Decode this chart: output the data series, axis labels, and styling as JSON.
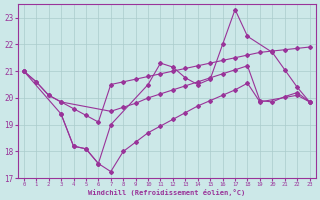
{
  "bg_color": "#cce8e8",
  "line_color": "#993399",
  "grid_color": "#aacccc",
  "xlabel": "Windchill (Refroidissement éolien,°C)",
  "ylim": [
    17,
    23.5
  ],
  "xlim": [
    -0.5,
    23.5
  ],
  "yticks": [
    17,
    18,
    19,
    20,
    21,
    22,
    23
  ],
  "xticks": [
    0,
    1,
    2,
    3,
    4,
    5,
    6,
    7,
    8,
    9,
    10,
    11,
    12,
    13,
    14,
    15,
    16,
    17,
    18,
    19,
    20,
    21,
    22,
    23
  ],
  "line1_x": [
    0,
    1,
    2,
    3,
    4,
    5,
    6,
    7,
    8,
    9,
    10,
    11,
    12,
    13,
    14,
    15,
    16,
    17,
    18,
    19,
    20,
    21,
    22,
    23
  ],
  "line1_y": [
    21.0,
    20.6,
    20.1,
    19.85,
    19.6,
    19.35,
    19.1,
    20.5,
    20.6,
    20.7,
    20.8,
    20.9,
    21.0,
    21.1,
    21.2,
    21.3,
    21.4,
    21.5,
    21.6,
    21.7,
    21.75,
    21.8,
    21.85,
    21.9
  ],
  "line2_x": [
    0,
    3,
    4,
    5,
    6,
    7,
    10,
    11,
    12,
    13,
    14,
    15,
    16,
    17,
    18,
    20,
    21,
    22,
    23
  ],
  "line2_y": [
    21.0,
    19.4,
    18.2,
    18.1,
    17.55,
    19.0,
    20.5,
    21.3,
    21.15,
    20.75,
    20.5,
    20.7,
    22.0,
    23.3,
    22.3,
    21.7,
    21.05,
    20.4,
    19.85
  ],
  "line3_x": [
    3,
    4,
    5,
    6,
    7,
    8,
    9,
    10,
    11,
    12,
    13,
    14,
    15,
    16,
    17,
    18,
    19,
    22,
    23
  ],
  "line3_y": [
    19.4,
    18.2,
    18.1,
    17.55,
    17.25,
    18.0,
    18.35,
    18.7,
    18.95,
    19.2,
    19.45,
    19.7,
    19.9,
    20.1,
    20.3,
    20.55,
    19.85,
    20.1,
    19.85
  ],
  "line4_x": [
    0,
    1,
    2,
    3,
    7,
    8,
    9,
    10,
    11,
    12,
    13,
    14,
    15,
    16,
    17,
    18,
    19,
    20,
    21,
    22,
    23
  ],
  "line4_y": [
    21.0,
    20.6,
    20.1,
    19.85,
    19.5,
    19.65,
    19.8,
    20.0,
    20.15,
    20.3,
    20.45,
    20.6,
    20.75,
    20.9,
    21.05,
    21.2,
    19.9,
    19.85,
    20.05,
    20.2,
    19.85
  ]
}
